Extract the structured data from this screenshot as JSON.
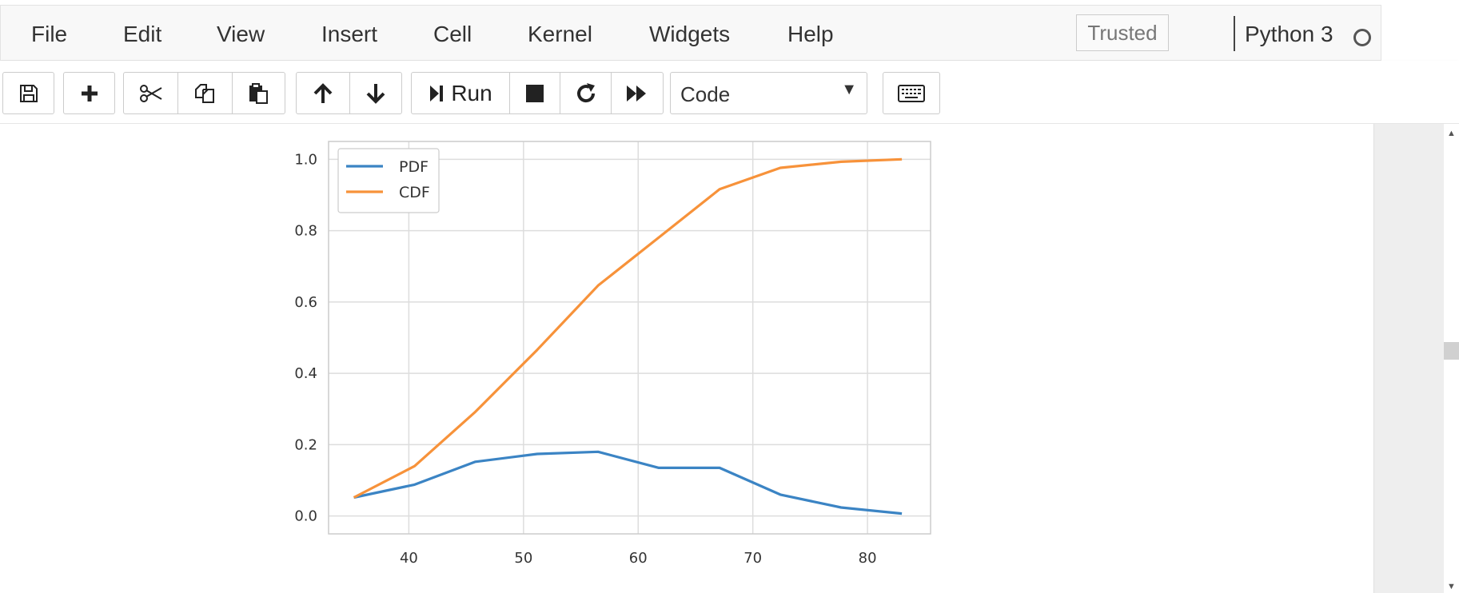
{
  "menubar": {
    "items": [
      "File",
      "Edit",
      "View",
      "Insert",
      "Cell",
      "Kernel",
      "Widgets",
      "Help"
    ],
    "trusted_label": "Trusted",
    "kernel_name": "Python 3"
  },
  "toolbar": {
    "run_label": "Run",
    "cell_type": "Code",
    "cell_type_arrow": "▼"
  },
  "icons": {
    "save": "floppy-disk-icon",
    "insert": "plus-icon",
    "cut": "scissors-icon",
    "copy": "copy-icon",
    "paste": "paste-icon",
    "move_up": "arrow-up-icon",
    "move_down": "arrow-down-icon",
    "run": "step-forward-icon",
    "interrupt": "stop-icon",
    "restart": "refresh-icon",
    "restart_run_all": "fast-forward-icon",
    "command_palette": "keyboard-icon",
    "kernel_status": "circle-icon"
  },
  "colors": {
    "pdf": "#3b84c4",
    "cdf": "#f7923a",
    "grid": "#dddddd",
    "axes_edge": "#cccccc"
  },
  "chart_data": {
    "type": "line",
    "title": "",
    "xlabel": "",
    "ylabel": "",
    "xlim": [
      33,
      85.5
    ],
    "ylim": [
      -0.05,
      1.05
    ],
    "xticks": [
      40,
      50,
      60,
      70,
      80
    ],
    "yticks": [
      0.0,
      0.2,
      0.4,
      0.6,
      0.8,
      1.0
    ],
    "grid": true,
    "legend_position": "top-left",
    "series": [
      {
        "name": "PDF",
        "color": "#3b84c4",
        "x": [
          35.2,
          40.5,
          45.8,
          51.2,
          56.5,
          61.8,
          67.1,
          72.4,
          77.7,
          83.0
        ],
        "y": [
          0.052,
          0.088,
          0.152,
          0.174,
          0.18,
          0.135,
          0.135,
          0.06,
          0.024,
          0.007
        ]
      },
      {
        "name": "CDF",
        "color": "#f7923a",
        "x": [
          35.2,
          40.5,
          45.8,
          51.2,
          56.5,
          61.8,
          67.1,
          72.4,
          77.7,
          83.0
        ],
        "y": [
          0.052,
          0.14,
          0.292,
          0.466,
          0.646,
          0.781,
          0.916,
          0.976,
          0.993,
          1.0
        ]
      }
    ]
  }
}
